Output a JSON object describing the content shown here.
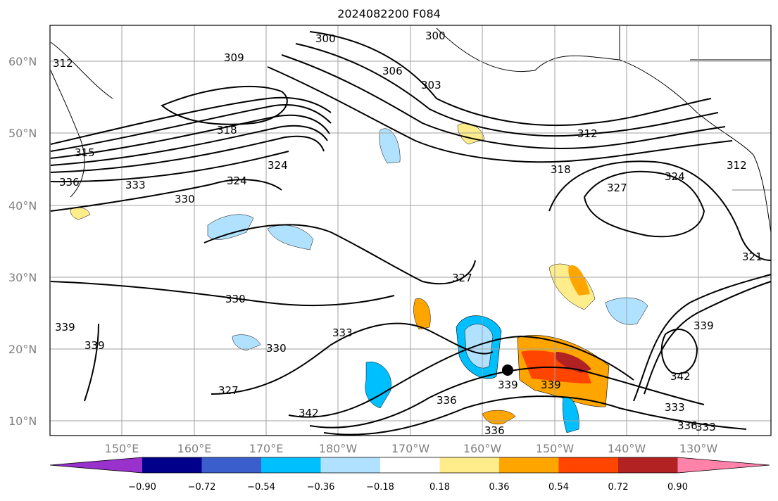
{
  "title": "2024082200 F084",
  "lat_labels": [
    "60°N",
    "50°N",
    "40°N",
    "30°N",
    "20°N",
    "10°N"
  ],
  "lon_labels": [
    "150°E",
    "160°E",
    "170°E",
    "180°W",
    "170°W",
    "160°W",
    "150°W",
    "140°W",
    "130°W"
  ],
  "colorbar": {
    "colors": [
      "#9932CC",
      "#00008B",
      "#3A5FCD",
      "#00BFFF",
      "#B0E2FF",
      "#FFFFFF",
      "#FFEC8B",
      "#FFA500",
      "#FF4500",
      "#B22222",
      "#FF82AB"
    ],
    "labels": [
      "−0.90",
      "−0.72",
      "−0.54",
      "−0.36",
      "−0.18",
      "0.18",
      "0.36",
      "0.54",
      "0.72",
      "0.90"
    ]
  },
  "contour_labels": [
    {
      "text": "300"
    },
    {
      "text": "300"
    },
    {
      "text": "303"
    },
    {
      "text": "306"
    },
    {
      "text": "309"
    },
    {
      "text": "312"
    },
    {
      "text": "312"
    },
    {
      "text": "312"
    },
    {
      "text": "315"
    },
    {
      "text": "318"
    },
    {
      "text": "318"
    },
    {
      "text": "321"
    },
    {
      "text": "324"
    },
    {
      "text": "324"
    },
    {
      "text": "324"
    },
    {
      "text": "327"
    },
    {
      "text": "327"
    },
    {
      "text": "327"
    },
    {
      "text": "330"
    },
    {
      "text": "330"
    },
    {
      "text": "330"
    },
    {
      "text": "333"
    },
    {
      "text": "333"
    },
    {
      "text": "333"
    },
    {
      "text": "333"
    },
    {
      "text": "336"
    },
    {
      "text": "336"
    },
    {
      "text": "336"
    },
    {
      "text": "336"
    },
    {
      "text": "339"
    },
    {
      "text": "339"
    },
    {
      "text": "339"
    },
    {
      "text": "339"
    },
    {
      "text": "339"
    },
    {
      "text": "342"
    },
    {
      "text": "342"
    }
  ]
}
